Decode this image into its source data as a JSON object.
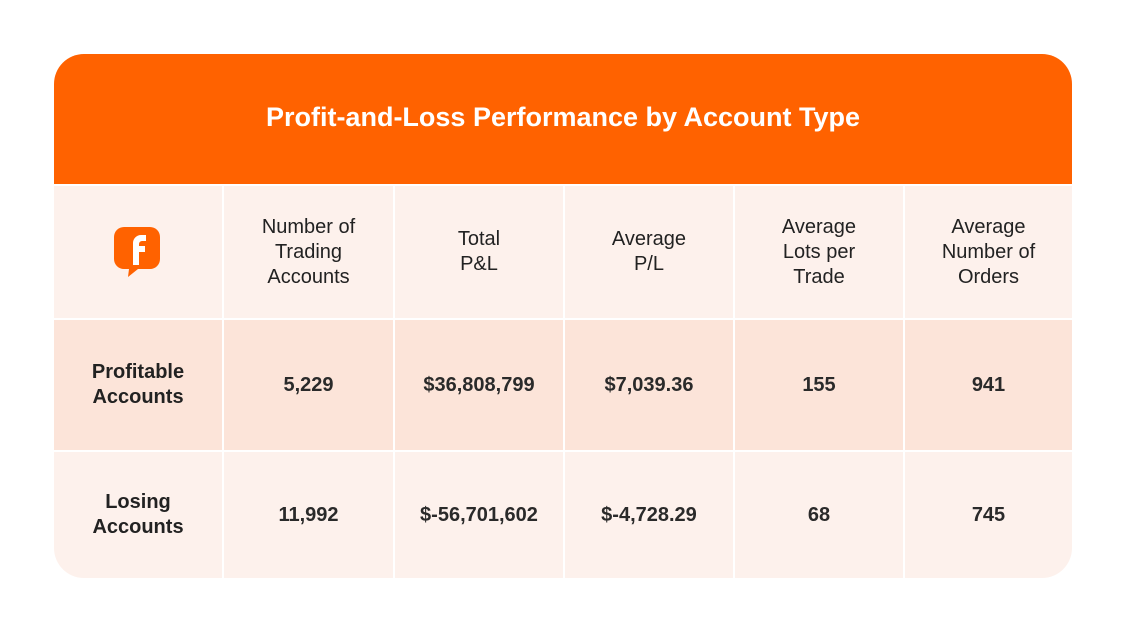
{
  "header": {
    "title": "Profit-and-Loss Performance by Account Type"
  },
  "table": {
    "columns": [
      "Number of\nTrading\nAccounts",
      "Total\nP&L",
      "Average\nP/L",
      "Average\nLots per\nTrade",
      "Average\nNumber of\nOrders"
    ],
    "rows": [
      [
        "Profitable\nAccounts",
        "5,229",
        "$36,808,799",
        "$7,039.36",
        "155",
        "941"
      ],
      [
        "Losing\nAccounts",
        "11,992",
        "$-56,701,602",
        "$-4,728.29",
        "68",
        "745"
      ]
    ]
  }
}
